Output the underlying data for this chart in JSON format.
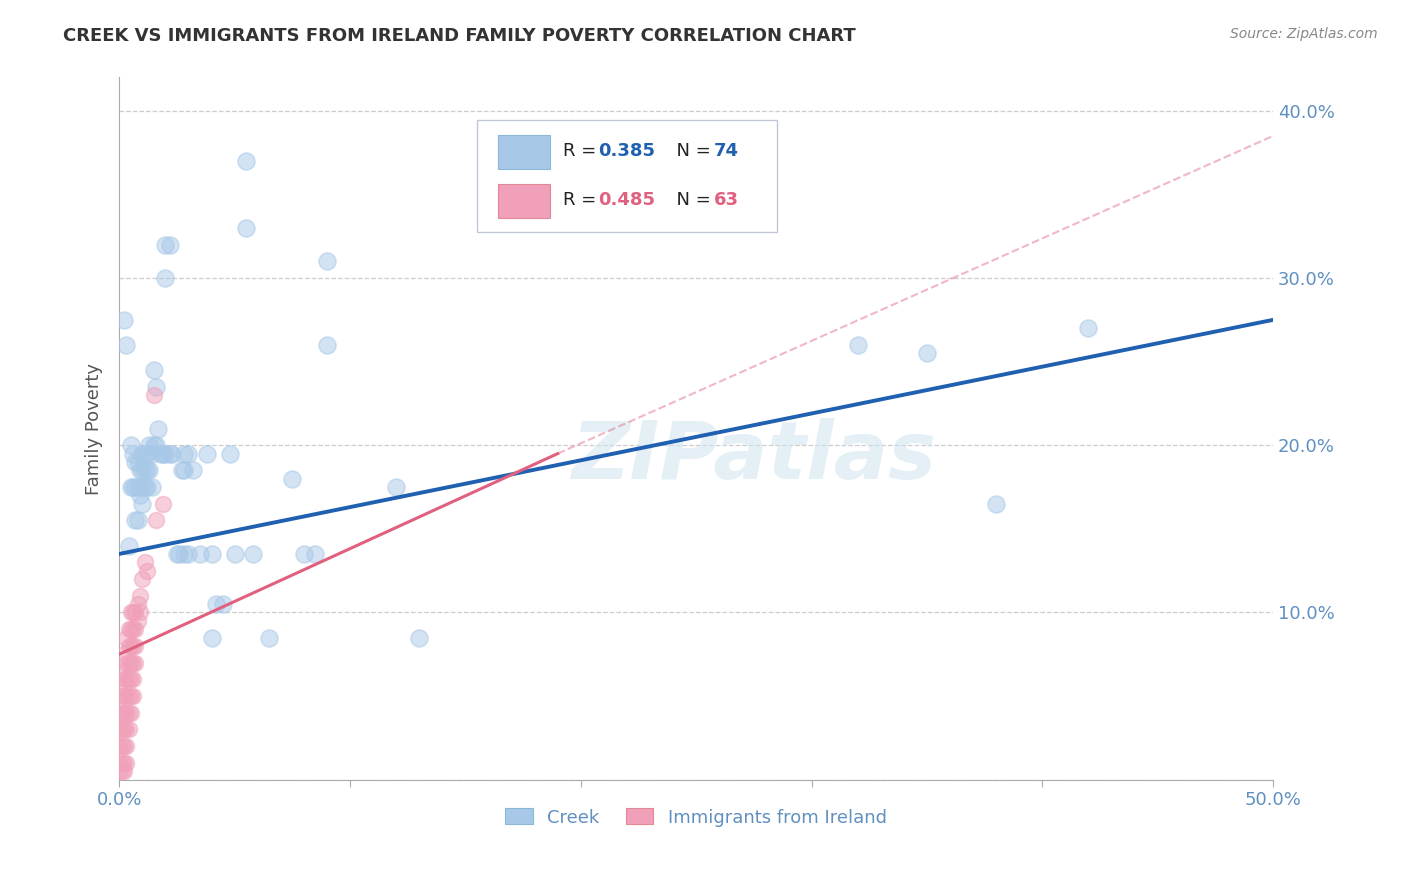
{
  "title": "CREEK VS IMMIGRANTS FROM IRELAND FAMILY POVERTY CORRELATION CHART",
  "source": "Source: ZipAtlas.com",
  "ylabel": "Family Poverty",
  "xlim": [
    0.0,
    0.5
  ],
  "ylim": [
    0.0,
    0.42
  ],
  "creek_R": 0.385,
  "creek_N": 74,
  "ireland_R": 0.485,
  "ireland_N": 63,
  "creek_color": "#a8c8e8",
  "ireland_color": "#f0a0b8",
  "creek_line_color": "#2060b0",
  "ireland_line_color": "#e06080",
  "watermark": "ZIPatlas",
  "background_color": "#ffffff",
  "grid_color": "#c8c8c8",
  "tick_color": "#6090c0",
  "creek_scatter": [
    [
      0.002,
      0.275
    ],
    [
      0.003,
      0.26
    ],
    [
      0.004,
      0.14
    ],
    [
      0.005,
      0.2
    ],
    [
      0.005,
      0.175
    ],
    [
      0.006,
      0.195
    ],
    [
      0.006,
      0.175
    ],
    [
      0.007,
      0.19
    ],
    [
      0.007,
      0.175
    ],
    [
      0.007,
      0.155
    ],
    [
      0.008,
      0.19
    ],
    [
      0.008,
      0.175
    ],
    [
      0.008,
      0.155
    ],
    [
      0.009,
      0.185
    ],
    [
      0.009,
      0.17
    ],
    [
      0.01,
      0.195
    ],
    [
      0.01,
      0.185
    ],
    [
      0.01,
      0.175
    ],
    [
      0.01,
      0.165
    ],
    [
      0.011,
      0.195
    ],
    [
      0.011,
      0.185
    ],
    [
      0.011,
      0.175
    ],
    [
      0.012,
      0.195
    ],
    [
      0.012,
      0.185
    ],
    [
      0.012,
      0.175
    ],
    [
      0.013,
      0.2
    ],
    [
      0.013,
      0.185
    ],
    [
      0.014,
      0.195
    ],
    [
      0.014,
      0.175
    ],
    [
      0.015,
      0.245
    ],
    [
      0.015,
      0.2
    ],
    [
      0.016,
      0.235
    ],
    [
      0.016,
      0.2
    ],
    [
      0.017,
      0.21
    ],
    [
      0.018,
      0.195
    ],
    [
      0.019,
      0.195
    ],
    [
      0.02,
      0.32
    ],
    [
      0.02,
      0.3
    ],
    [
      0.02,
      0.195
    ],
    [
      0.022,
      0.32
    ],
    [
      0.022,
      0.195
    ],
    [
      0.023,
      0.195
    ],
    [
      0.025,
      0.135
    ],
    [
      0.026,
      0.135
    ],
    [
      0.027,
      0.185
    ],
    [
      0.028,
      0.195
    ],
    [
      0.028,
      0.185
    ],
    [
      0.028,
      0.135
    ],
    [
      0.03,
      0.195
    ],
    [
      0.03,
      0.135
    ],
    [
      0.032,
      0.185
    ],
    [
      0.035,
      0.135
    ],
    [
      0.038,
      0.195
    ],
    [
      0.04,
      0.135
    ],
    [
      0.04,
      0.085
    ],
    [
      0.042,
      0.105
    ],
    [
      0.045,
      0.105
    ],
    [
      0.048,
      0.195
    ],
    [
      0.05,
      0.135
    ],
    [
      0.055,
      0.37
    ],
    [
      0.055,
      0.33
    ],
    [
      0.058,
      0.135
    ],
    [
      0.065,
      0.085
    ],
    [
      0.075,
      0.18
    ],
    [
      0.08,
      0.135
    ],
    [
      0.085,
      0.135
    ],
    [
      0.09,
      0.31
    ],
    [
      0.09,
      0.26
    ],
    [
      0.12,
      0.175
    ],
    [
      0.13,
      0.085
    ],
    [
      0.32,
      0.26
    ],
    [
      0.35,
      0.255
    ],
    [
      0.38,
      0.165
    ],
    [
      0.42,
      0.27
    ]
  ],
  "ireland_scatter": [
    [
      0.0,
      0.055
    ],
    [
      0.0,
      0.04
    ],
    [
      0.0,
      0.03
    ],
    [
      0.0,
      0.02
    ],
    [
      0.0,
      0.01
    ],
    [
      0.0,
      0.005
    ],
    [
      0.001,
      0.065
    ],
    [
      0.001,
      0.05
    ],
    [
      0.001,
      0.04
    ],
    [
      0.001,
      0.03
    ],
    [
      0.001,
      0.02
    ],
    [
      0.001,
      0.01
    ],
    [
      0.001,
      0.005
    ],
    [
      0.002,
      0.075
    ],
    [
      0.002,
      0.06
    ],
    [
      0.002,
      0.05
    ],
    [
      0.002,
      0.04
    ],
    [
      0.002,
      0.03
    ],
    [
      0.002,
      0.02
    ],
    [
      0.002,
      0.01
    ],
    [
      0.002,
      0.005
    ],
    [
      0.003,
      0.085
    ],
    [
      0.003,
      0.07
    ],
    [
      0.003,
      0.06
    ],
    [
      0.003,
      0.05
    ],
    [
      0.003,
      0.04
    ],
    [
      0.003,
      0.03
    ],
    [
      0.003,
      0.02
    ],
    [
      0.003,
      0.01
    ],
    [
      0.004,
      0.09
    ],
    [
      0.004,
      0.08
    ],
    [
      0.004,
      0.07
    ],
    [
      0.004,
      0.06
    ],
    [
      0.004,
      0.05
    ],
    [
      0.004,
      0.04
    ],
    [
      0.004,
      0.03
    ],
    [
      0.005,
      0.1
    ],
    [
      0.005,
      0.09
    ],
    [
      0.005,
      0.08
    ],
    [
      0.005,
      0.07
    ],
    [
      0.005,
      0.06
    ],
    [
      0.005,
      0.05
    ],
    [
      0.005,
      0.04
    ],
    [
      0.006,
      0.1
    ],
    [
      0.006,
      0.09
    ],
    [
      0.006,
      0.08
    ],
    [
      0.006,
      0.07
    ],
    [
      0.006,
      0.06
    ],
    [
      0.006,
      0.05
    ],
    [
      0.007,
      0.1
    ],
    [
      0.007,
      0.09
    ],
    [
      0.007,
      0.08
    ],
    [
      0.007,
      0.07
    ],
    [
      0.008,
      0.105
    ],
    [
      0.008,
      0.095
    ],
    [
      0.009,
      0.11
    ],
    [
      0.009,
      0.1
    ],
    [
      0.01,
      0.12
    ],
    [
      0.011,
      0.13
    ],
    [
      0.012,
      0.125
    ],
    [
      0.015,
      0.23
    ],
    [
      0.016,
      0.155
    ],
    [
      0.019,
      0.165
    ]
  ],
  "creek_trendline": [
    [
      0.0,
      0.135
    ],
    [
      0.5,
      0.275
    ]
  ],
  "ireland_trendline_solid": [
    [
      0.0,
      0.075
    ],
    [
      0.19,
      0.195
    ]
  ],
  "ireland_trendline_dashed": [
    [
      0.19,
      0.195
    ],
    [
      0.5,
      0.385
    ]
  ]
}
